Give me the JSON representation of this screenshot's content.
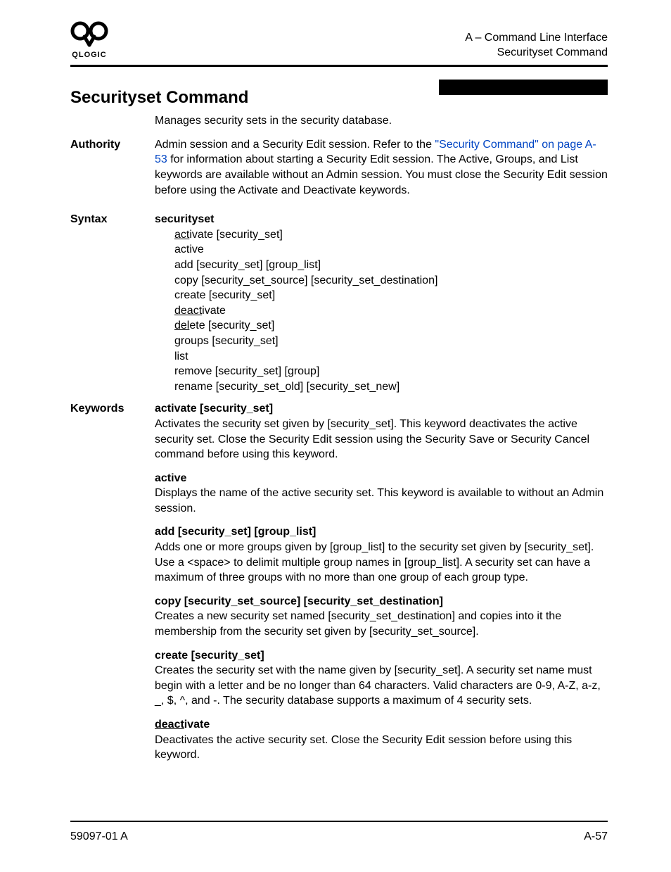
{
  "header": {
    "logo_text": "QLOGIC",
    "line1": "A – Command Line Interface",
    "line2": "Securityset Command"
  },
  "title": "Securityset Command",
  "intro": "Manages security sets in the security database.",
  "authority": {
    "label": "Authority",
    "text_before_link": "Admin session and a Security Edit session. Refer to the ",
    "link_text": "\"Security Command\" on page A-53",
    "text_after_link": " for information about starting a Security Edit session. The Active, Groups, and List keywords are available without an Admin session. You must close the Security Edit session before using the Activate and Deactivate keywords."
  },
  "syntax": {
    "label": "Syntax",
    "command": "securityset",
    "lines": [
      {
        "pre": "act",
        "rest": "ivate [security_set]",
        "underline": true
      },
      {
        "pre": "",
        "rest": "active",
        "underline": false
      },
      {
        "pre": "",
        "rest": "add [security_set] [group_list]",
        "underline": false
      },
      {
        "pre": "",
        "rest": "copy [security_set_source] [security_set_destination]",
        "underline": false
      },
      {
        "pre": "",
        "rest": "create [security_set]",
        "underline": false
      },
      {
        "pre": "deact",
        "rest": "ivate",
        "underline": true
      },
      {
        "pre": "del",
        "rest": "ete [security_set]",
        "underline": true
      },
      {
        "pre": "",
        "rest": "groups [security_set]",
        "underline": false
      },
      {
        "pre": "",
        "rest": "list",
        "underline": false
      },
      {
        "pre": "",
        "rest": "remove [security_set] [group]",
        "underline": false
      },
      {
        "pre": "",
        "rest": "rename [security_set_old] [security_set_new]",
        "underline": false
      }
    ]
  },
  "keywords": {
    "label": "Keywords",
    "items": [
      {
        "title": "activate [security_set]",
        "underline_prefix": "",
        "body": "Activates the security set given by [security_set]. This keyword deactivates the active security set. Close the Security Edit session using the Security Save or Security Cancel command before using this keyword."
      },
      {
        "title": "active",
        "underline_prefix": "",
        "body": "Displays the name of the active security set. This keyword is available to without an Admin session."
      },
      {
        "title": "add [security_set] [group_list]",
        "underline_prefix": "",
        "body": "Adds one or more groups given by [group_list] to the security set given by [security_set]. Use a <space> to delimit multiple group names in [group_list]. A security set can have a maximum of three groups with no more than one group of each group type."
      },
      {
        "title": "copy [security_set_source] [security_set_destination]",
        "underline_prefix": "",
        "body": "Creates a new security set named [security_set_destination] and copies into it the membership from the security set given by [security_set_source]."
      },
      {
        "title": "create [security_set]",
        "underline_prefix": "",
        "body": "Creates the security set with the name given by [security_set]. A security set name must begin with a letter and be no longer than 64 characters. Valid characters are 0-9, A-Z, a-z, _, $, ^, and -. The security database supports a maximum of 4 security sets."
      },
      {
        "title": "ivate",
        "underline_prefix": "deact",
        "body": "Deactivates the active security set. Close the Security Edit session before using this keyword."
      }
    ]
  },
  "footer": {
    "left": "59097-01 A",
    "right": "A-57"
  }
}
